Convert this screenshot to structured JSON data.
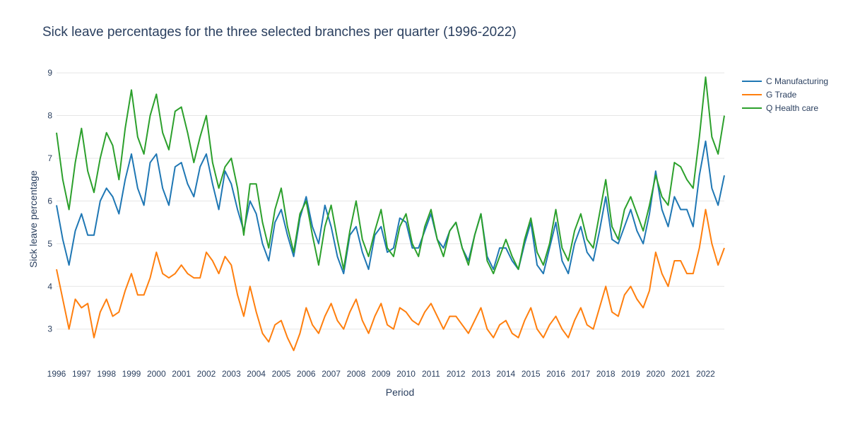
{
  "chart_data": {
    "type": "line",
    "title": "Sick leave percentages for the three selected branches per quarter (1996-2022)",
    "xlabel": "Period",
    "ylabel": "Sick leave percentage",
    "x_tick_labels": [
      "1996",
      "1997",
      "1998",
      "1999",
      "2000",
      "2001",
      "2002",
      "2003",
      "2004",
      "2005",
      "2006",
      "2007",
      "2008",
      "2009",
      "2010",
      "2011",
      "2012",
      "2013",
      "2014",
      "2015",
      "2016",
      "2017",
      "2018",
      "2019",
      "2020",
      "2021",
      "2022"
    ],
    "y_ticks": [
      3,
      4,
      5,
      6,
      7,
      8,
      9
    ],
    "ylim": [
      2.3,
      9.3
    ],
    "x_start_year": 1996,
    "quarters_per_year": 4,
    "grid": "horizontal",
    "legend_position": "top-right",
    "series": [
      {
        "name": "C Manufacturing",
        "color": "#1f77b4",
        "values": [
          5.9,
          5.1,
          4.5,
          5.3,
          5.7,
          5.2,
          5.2,
          6.0,
          6.3,
          6.1,
          5.7,
          6.5,
          7.1,
          6.3,
          5.9,
          6.9,
          7.1,
          6.3,
          5.9,
          6.8,
          6.9,
          6.4,
          6.1,
          6.8,
          7.1,
          6.4,
          5.8,
          6.7,
          6.4,
          5.8,
          5.3,
          6.0,
          5.7,
          5.0,
          4.6,
          5.5,
          5.8,
          5.2,
          4.7,
          5.6,
          6.1,
          5.4,
          5.0,
          5.9,
          5.4,
          4.7,
          4.3,
          5.2,
          5.4,
          4.8,
          4.4,
          5.2,
          5.4,
          4.8,
          4.9,
          5.6,
          5.5,
          4.9,
          4.9,
          5.3,
          5.7,
          5.1,
          4.9,
          5.3,
          5.5,
          4.9,
          4.6,
          5.2,
          5.7,
          4.7,
          4.4,
          4.9,
          4.9,
          4.6,
          4.4,
          5.0,
          5.5,
          4.5,
          4.3,
          4.9,
          5.5,
          4.6,
          4.3,
          5.0,
          5.4,
          4.8,
          4.6,
          5.3,
          6.1,
          5.1,
          5.0,
          5.4,
          5.8,
          5.3,
          5.0,
          5.7,
          6.7,
          5.8,
          5.4,
          6.1,
          5.8,
          5.8,
          5.4,
          6.6,
          7.4,
          6.3,
          5.9,
          6.6
        ]
      },
      {
        "name": "G Trade",
        "color": "#ff7f0e",
        "values": [
          4.4,
          3.7,
          3.0,
          3.7,
          3.5,
          3.6,
          2.8,
          3.4,
          3.7,
          3.3,
          3.4,
          3.9,
          4.3,
          3.8,
          3.8,
          4.2,
          4.8,
          4.3,
          4.2,
          4.3,
          4.5,
          4.3,
          4.2,
          4.2,
          4.8,
          4.6,
          4.3,
          4.7,
          4.5,
          3.8,
          3.3,
          4.0,
          3.4,
          2.9,
          2.7,
          3.1,
          3.2,
          2.8,
          2.5,
          2.9,
          3.5,
          3.1,
          2.9,
          3.3,
          3.6,
          3.2,
          3.0,
          3.4,
          3.7,
          3.2,
          2.9,
          3.3,
          3.6,
          3.1,
          3.0,
          3.5,
          3.4,
          3.2,
          3.1,
          3.4,
          3.6,
          3.3,
          3.0,
          3.3,
          3.3,
          3.1,
          2.9,
          3.2,
          3.5,
          3.0,
          2.8,
          3.1,
          3.2,
          2.9,
          2.8,
          3.2,
          3.5,
          3.0,
          2.8,
          3.1,
          3.3,
          3.0,
          2.8,
          3.2,
          3.5,
          3.1,
          3.0,
          3.5,
          4.0,
          3.4,
          3.3,
          3.8,
          4.0,
          3.7,
          3.5,
          3.9,
          4.8,
          4.3,
          4.0,
          4.6,
          4.6,
          4.3,
          4.3,
          4.9,
          5.8,
          5.0,
          4.5,
          4.9
        ]
      },
      {
        "name": "Q Health care",
        "color": "#2ca02c",
        "values": [
          7.6,
          6.5,
          5.8,
          6.9,
          7.7,
          6.7,
          6.2,
          7.0,
          7.6,
          7.3,
          6.5,
          7.7,
          8.6,
          7.5,
          7.1,
          8.0,
          8.5,
          7.6,
          7.2,
          8.1,
          8.2,
          7.6,
          6.9,
          7.5,
          8.0,
          6.9,
          6.3,
          6.8,
          7.0,
          6.3,
          5.2,
          6.4,
          6.4,
          5.5,
          4.9,
          5.8,
          6.3,
          5.4,
          4.8,
          5.7,
          6.0,
          5.2,
          4.5,
          5.4,
          5.9,
          5.1,
          4.4,
          5.3,
          6.0,
          5.1,
          4.7,
          5.3,
          5.8,
          4.9,
          4.7,
          5.4,
          5.7,
          5.0,
          4.7,
          5.4,
          5.8,
          5.1,
          4.7,
          5.3,
          5.5,
          4.9,
          4.5,
          5.2,
          5.7,
          4.6,
          4.3,
          4.7,
          5.1,
          4.7,
          4.4,
          5.1,
          5.6,
          4.8,
          4.5,
          5.0,
          5.8,
          4.9,
          4.6,
          5.3,
          5.7,
          5.1,
          4.9,
          5.7,
          6.5,
          5.4,
          5.1,
          5.8,
          6.1,
          5.7,
          5.3,
          5.9,
          6.6,
          6.1,
          5.9,
          6.9,
          6.8,
          6.5,
          6.3,
          7.5,
          8.9,
          7.5,
          7.1,
          8.0
        ]
      }
    ]
  }
}
